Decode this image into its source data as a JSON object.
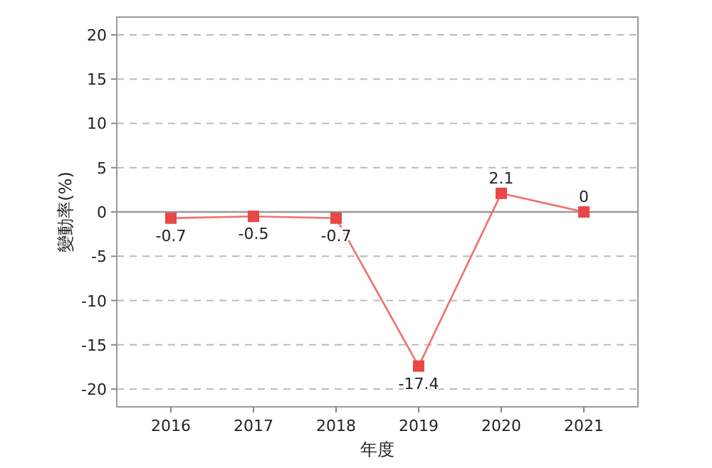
{
  "chart_data": {
    "type": "line",
    "xlabel": "年度",
    "ylabel": "變動率(%)",
    "categories": [
      "2016",
      "2017",
      "2018",
      "2019",
      "2020",
      "2021"
    ],
    "series": [
      {
        "color": "#f07070",
        "values": [
          -0.7,
          -0.5,
          -0.7,
          -17.4,
          2.1,
          0
        ]
      }
    ],
    "ylim": [
      -22,
      22
    ],
    "yticks": [
      -20,
      -15,
      -10,
      -5,
      0,
      5,
      10,
      15,
      20
    ],
    "grid": "y",
    "marker": "square",
    "line_style": "solid",
    "data_labels": true,
    "ref_lines": [
      {
        "axis": "y",
        "value": 0,
        "color": "#999999"
      }
    ]
  }
}
